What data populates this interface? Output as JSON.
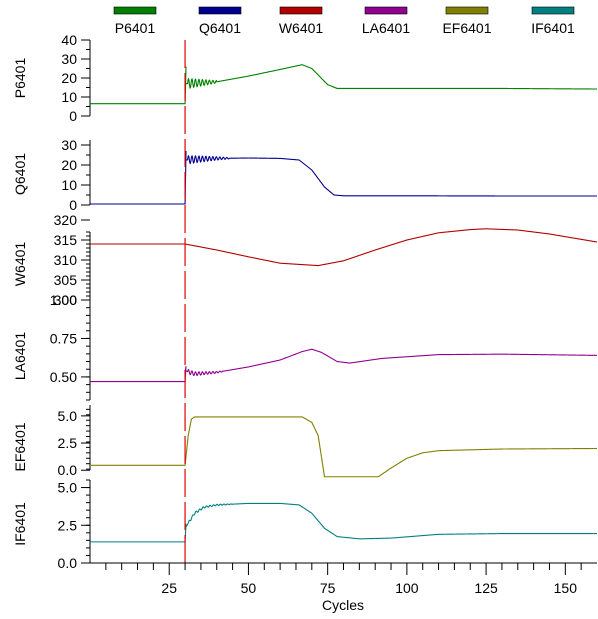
{
  "chart_data": {
    "type": "line",
    "xlabel": "Cycles",
    "xlim": [
      0,
      160
    ],
    "x_ticks": [
      25,
      50,
      75,
      100,
      125,
      150
    ],
    "x_minor_step": 5,
    "event_marker": {
      "x": 30,
      "color": "#e00000"
    },
    "legend": [
      {
        "name": "P6401",
        "color": "#008000"
      },
      {
        "name": "Q6401",
        "color": "#000090"
      },
      {
        "name": "W6401",
        "color": "#b00000"
      },
      {
        "name": "LA6401",
        "color": "#900090"
      },
      {
        "name": "EF6401",
        "color": "#808000"
      },
      {
        "name": "IF6401",
        "color": "#008080"
      }
    ],
    "panels": [
      {
        "name": "P6401",
        "ylabel": "P6401",
        "color": "#008000",
        "ylim": [
          0,
          40
        ],
        "ticks": [
          {
            "v": 0,
            "t": "0"
          },
          {
            "v": 10,
            "t": "10"
          },
          {
            "v": 20,
            "t": "20"
          },
          {
            "v": 30,
            "t": "30"
          },
          {
            "v": 40,
            "t": "40"
          }
        ],
        "minor_step": 5,
        "baseline": 6.5,
        "points": [
          [
            30,
            17
          ],
          [
            40,
            18
          ],
          [
            50,
            21
          ],
          [
            60,
            24.5
          ],
          [
            67,
            27
          ],
          [
            70,
            25
          ],
          [
            75,
            16.5
          ],
          [
            78,
            14.5
          ],
          [
            90,
            14.5
          ],
          [
            110,
            14.5
          ],
          [
            130,
            14.5
          ],
          [
            160,
            14.2
          ]
        ],
        "osc": {
          "x0": 30.8,
          "x1": 40,
          "amp0": 2.6,
          "amp1": 0.6,
          "period": 1.1
        },
        "spike": {
          "x": 30.3,
          "y": 26
        }
      },
      {
        "name": "Q6401",
        "ylabel": "Q6401",
        "color": "#000090",
        "ylim": [
          0,
          30
        ],
        "ticks": [
          {
            "v": 0,
            "t": "0"
          },
          {
            "v": 10,
            "t": "10"
          },
          {
            "v": 20,
            "t": "20"
          },
          {
            "v": 30,
            "t": "30"
          }
        ],
        "minor_step": 5,
        "baseline": 0.5,
        "points": [
          [
            30,
            22.5
          ],
          [
            35,
            23
          ],
          [
            40,
            23.3
          ],
          [
            50,
            23.5
          ],
          [
            60,
            23.3
          ],
          [
            66,
            22.5
          ],
          [
            70,
            17.5
          ],
          [
            74,
            9
          ],
          [
            77,
            5
          ],
          [
            80,
            4.6
          ],
          [
            100,
            4.6
          ],
          [
            130,
            4.5
          ],
          [
            160,
            4.5
          ]
        ],
        "osc": {
          "x0": 30.8,
          "x1": 44,
          "amp0": 2.0,
          "amp1": 0.3,
          "period": 1.1
        },
        "spike": {
          "x": 30.3,
          "y": 27
        }
      },
      {
        "name": "W6401",
        "ylabel": "W6401",
        "color": "#b00000",
        "ylim": [
          300,
          320
        ],
        "ticks": [
          {
            "v": 300,
            "t": "300"
          },
          {
            "v": 305,
            "t": "305"
          },
          {
            "v": 310,
            "t": "310"
          },
          {
            "v": 315,
            "t": "315"
          },
          {
            "v": 320,
            "t": "320"
          }
        ],
        "minor_step": 1,
        "baseline": 314,
        "points": [
          [
            30,
            314
          ],
          [
            40,
            312.5
          ],
          [
            50,
            310.8
          ],
          [
            60,
            309.2
          ],
          [
            72,
            308.6
          ],
          [
            80,
            309.8
          ],
          [
            90,
            312.5
          ],
          [
            100,
            315
          ],
          [
            110,
            316.8
          ],
          [
            120,
            317.6
          ],
          [
            125,
            317.8
          ],
          [
            135,
            317.5
          ],
          [
            145,
            316.5
          ],
          [
            160,
            314.5
          ]
        ],
        "osc": null,
        "spike": null
      },
      {
        "name": "LA6401",
        "ylabel": "LA6401",
        "color": "#900090",
        "ylim": [
          0.35,
          1.0
        ],
        "ticks": [
          {
            "v": 0.5,
            "t": "0.50"
          },
          {
            "v": 0.75,
            "t": "0.75"
          },
          {
            "v": 1.0,
            "t": "1.00"
          }
        ],
        "minor_step": 0.05,
        "baseline": 0.47,
        "points": [
          [
            30,
            0.54
          ],
          [
            33,
            0.52
          ],
          [
            40,
            0.53
          ],
          [
            50,
            0.565
          ],
          [
            60,
            0.61
          ],
          [
            67,
            0.665
          ],
          [
            70,
            0.68
          ],
          [
            73,
            0.66
          ],
          [
            78,
            0.6
          ],
          [
            82,
            0.59
          ],
          [
            92,
            0.62
          ],
          [
            110,
            0.645
          ],
          [
            130,
            0.648
          ],
          [
            160,
            0.64
          ]
        ],
        "osc": {
          "x0": 30.8,
          "x1": 42,
          "amp0": 0.015,
          "amp1": 0.003,
          "period": 1.1
        },
        "spike": {
          "x": 30.3,
          "y": 0.57
        }
      },
      {
        "name": "EF6401",
        "ylabel": "EF6401",
        "color": "#808000",
        "ylim": [
          -0.9,
          6.0
        ],
        "ticks": [
          {
            "v": 0,
            "t": "0.0"
          },
          {
            "v": 2.5,
            "t": "2.5"
          },
          {
            "v": 5.0,
            "t": "5.0"
          }
        ],
        "minor_step": 0.5,
        "baseline": 0.45,
        "points": [
          [
            30,
            0.45
          ],
          [
            31,
            3.2
          ],
          [
            32,
            4.7
          ],
          [
            33,
            4.9
          ],
          [
            50,
            4.9
          ],
          [
            67,
            4.9
          ],
          [
            70,
            4.4
          ],
          [
            72,
            3.2
          ],
          [
            74,
            -0.6
          ],
          [
            91,
            -0.6
          ],
          [
            95,
            0.2
          ],
          [
            100,
            1.1
          ],
          [
            105,
            1.6
          ],
          [
            110,
            1.8
          ],
          [
            130,
            1.95
          ],
          [
            160,
            2.0
          ]
        ],
        "osc": null,
        "spike": null
      },
      {
        "name": "IF6401",
        "ylabel": "IF6401",
        "color": "#008080",
        "ylim": [
          0,
          5.5
        ],
        "ticks": [
          {
            "v": 0,
            "t": "0.0"
          },
          {
            "v": 2.5,
            "t": "2.5"
          },
          {
            "v": 5.0,
            "t": "5.0"
          }
        ],
        "minor_step": 0.5,
        "baseline": 1.4,
        "points": [
          [
            30,
            2.3
          ],
          [
            33,
            3.3
          ],
          [
            36,
            3.7
          ],
          [
            40,
            3.85
          ],
          [
            50,
            3.95
          ],
          [
            60,
            3.95
          ],
          [
            66,
            3.85
          ],
          [
            70,
            3.3
          ],
          [
            74,
            2.3
          ],
          [
            78,
            1.75
          ],
          [
            85,
            1.6
          ],
          [
            95,
            1.65
          ],
          [
            110,
            1.9
          ],
          [
            130,
            1.95
          ],
          [
            160,
            1.95
          ]
        ],
        "osc": {
          "x0": 31,
          "x1": 45,
          "amp0": 0.08,
          "amp1": 0.02,
          "period": 1.1
        },
        "spike": {
          "x": 30.3,
          "y": 2.6
        }
      }
    ]
  }
}
